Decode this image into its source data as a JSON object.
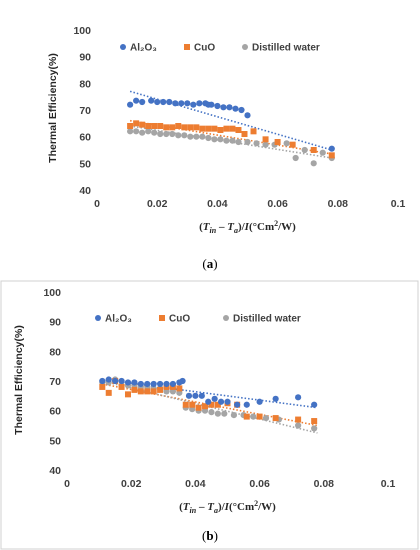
{
  "chart_data": [
    {
      "type": "scatter",
      "panel": "(a)",
      "caption": "(a)",
      "ylabel": "Thermal Efficiency(%)",
      "xlabel_parts": [
        "(",
        "T",
        "in",
        " – ",
        "T",
        "a",
        ")/",
        "I",
        "(°Cm",
        "2",
        "/W)"
      ],
      "xlim": [
        0,
        0.1
      ],
      "ylim": [
        40,
        100
      ],
      "xticks": [
        0,
        0.02,
        0.04,
        0.06,
        0.08,
        0.1
      ],
      "xtick_labels": [
        "0",
        "0.02",
        "0.04",
        "0.06",
        "0.08",
        "0.1"
      ],
      "yticks": [
        40,
        50,
        60,
        70,
        80,
        90,
        100
      ],
      "legend": "top",
      "grid": false,
      "series": [
        {
          "name": "Al₂O₃",
          "color": "#4472C4",
          "marker": "circle",
          "trendline": [
            [
              0.011,
              77
            ],
            [
              0.078,
              55
            ]
          ],
          "x": [
            0.011,
            0.013,
            0.015,
            0.018,
            0.02,
            0.022,
            0.024,
            0.026,
            0.028,
            0.03,
            0.032,
            0.034,
            0.036,
            0.037,
            0.038,
            0.04,
            0.042,
            0.044,
            0.046,
            0.048,
            0.05,
            0.078
          ],
          "y": [
            72,
            73.5,
            73,
            73.5,
            73,
            73,
            73,
            72.5,
            72.5,
            72.5,
            72,
            72.5,
            72.5,
            72,
            72,
            71.5,
            71,
            71,
            70.5,
            70,
            68,
            55.5
          ]
        },
        {
          "name": "CuO",
          "color": "#ED7D31",
          "marker": "square",
          "trendline": [
            [
              0.011,
              66
            ],
            [
              0.078,
              53.5
            ]
          ],
          "x": [
            0.011,
            0.013,
            0.015,
            0.017,
            0.019,
            0.021,
            0.023,
            0.025,
            0.027,
            0.029,
            0.031,
            0.033,
            0.035,
            0.037,
            0.039,
            0.041,
            0.043,
            0.045,
            0.047,
            0.049,
            0.052,
            0.056,
            0.06,
            0.065,
            0.072,
            0.078
          ],
          "y": [
            64,
            65,
            64.5,
            64,
            64,
            64,
            63.5,
            63.5,
            64,
            63.5,
            63.5,
            63.5,
            63,
            63,
            63,
            62.5,
            63,
            63,
            62.5,
            61,
            62,
            59,
            58,
            57,
            55,
            53
          ]
        },
        {
          "name": "Distilled water",
          "color": "#A5A5A5",
          "marker": "circle",
          "trendline": [
            [
              0.011,
              64
            ],
            [
              0.078,
              52
            ]
          ],
          "x": [
            0.011,
            0.013,
            0.015,
            0.017,
            0.019,
            0.021,
            0.023,
            0.025,
            0.027,
            0.029,
            0.031,
            0.033,
            0.035,
            0.037,
            0.039,
            0.041,
            0.043,
            0.045,
            0.047,
            0.05,
            0.053,
            0.056,
            0.059,
            0.063,
            0.066,
            0.069,
            0.072,
            0.075,
            0.078
          ],
          "y": [
            62,
            62,
            61.5,
            62,
            61.5,
            61,
            61,
            61,
            60.5,
            60.5,
            60,
            60,
            60,
            59.5,
            59,
            59,
            58.5,
            58.5,
            58,
            58,
            57.5,
            57,
            57,
            57.5,
            52,
            55,
            50,
            54,
            52
          ]
        }
      ]
    },
    {
      "type": "scatter",
      "panel": "(b)",
      "caption": "(b)",
      "ylabel": "Thermal Efficiency(%)",
      "xlabel_parts": [
        "(",
        "T",
        "in",
        " – ",
        "T",
        "a",
        ")/",
        "I",
        "(°Cm",
        "2",
        "/W)"
      ],
      "xlim": [
        0,
        0.1
      ],
      "ylim": [
        40,
        100
      ],
      "xticks": [
        0,
        0.02,
        0.04,
        0.06,
        0.08,
        0.1
      ],
      "xtick_labels": [
        "0",
        "0.02",
        "0.04",
        "0.06",
        "0.08",
        "0.1"
      ],
      "yticks": [
        40,
        50,
        60,
        70,
        80,
        90,
        100
      ],
      "legend": "top",
      "grid": false,
      "series": [
        {
          "name": "Al₂O₃",
          "color": "#4472C4",
          "marker": "circle",
          "trendline": [
            [
              0.011,
              70.5
            ],
            [
              0.078,
              61
            ]
          ],
          "x": [
            0.011,
            0.013,
            0.015,
            0.017,
            0.019,
            0.021,
            0.023,
            0.025,
            0.027,
            0.029,
            0.031,
            0.033,
            0.035,
            0.036,
            0.038,
            0.04,
            0.042,
            0.044,
            0.046,
            0.048,
            0.05,
            0.053,
            0.056,
            0.06,
            0.065,
            0.072,
            0.077
          ],
          "y": [
            70,
            70.5,
            70,
            70,
            69.5,
            69.5,
            69,
            69,
            69,
            69,
            69,
            69,
            69.5,
            70,
            65,
            65,
            65,
            63,
            64,
            63,
            63,
            62,
            62,
            63,
            64,
            64.5,
            62
          ]
        },
        {
          "name": "CuO",
          "color": "#ED7D31",
          "marker": "square",
          "trendline": [
            [
              0.011,
              69
            ],
            [
              0.078,
              55
            ]
          ],
          "x": [
            0.011,
            0.013,
            0.015,
            0.017,
            0.019,
            0.021,
            0.023,
            0.025,
            0.027,
            0.029,
            0.031,
            0.033,
            0.035,
            0.037,
            0.039,
            0.041,
            0.043,
            0.045,
            0.047,
            0.05,
            0.053,
            0.056,
            0.06,
            0.065,
            0.072,
            0.077
          ],
          "y": [
            68,
            66,
            70,
            68,
            65.5,
            67,
            66.5,
            66.5,
            66.5,
            67,
            68,
            68,
            67.5,
            62,
            62,
            61,
            61.5,
            62,
            62,
            62.5,
            62,
            58,
            58,
            57.5,
            57,
            56.5
          ]
        },
        {
          "name": "Distilled water",
          "color": "#A5A5A5",
          "marker": "circle",
          "trendline": [
            [
              0.011,
              70
            ],
            [
              0.078,
              52.5
            ]
          ],
          "x": [
            0.011,
            0.013,
            0.015,
            0.017,
            0.019,
            0.021,
            0.023,
            0.025,
            0.027,
            0.029,
            0.031,
            0.033,
            0.035,
            0.037,
            0.039,
            0.041,
            0.043,
            0.045,
            0.047,
            0.049,
            0.052,
            0.055,
            0.058,
            0.062,
            0.066,
            0.072,
            0.077
          ],
          "y": [
            69.5,
            69.5,
            70.5,
            68.5,
            68.5,
            68.5,
            68,
            68,
            67.5,
            67.5,
            66.5,
            66.5,
            66,
            61,
            60.5,
            60,
            60,
            59.5,
            59,
            59,
            58.5,
            58.5,
            58,
            57.5,
            57,
            55,
            54
          ]
        }
      ]
    }
  ]
}
